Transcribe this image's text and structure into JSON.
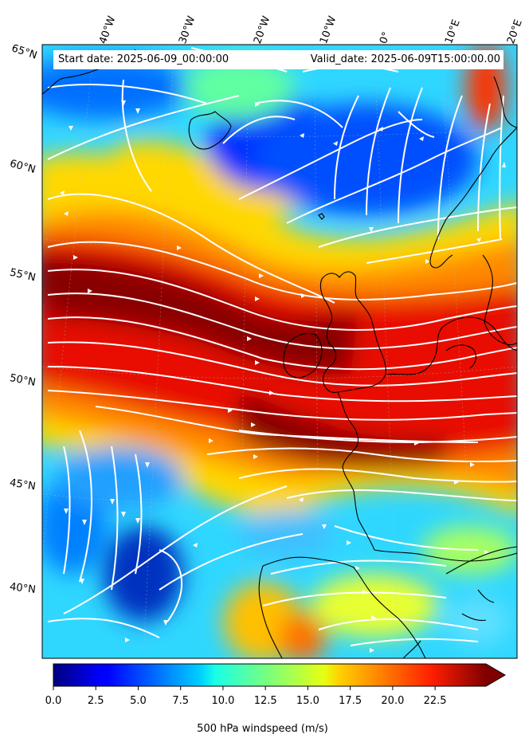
{
  "header": {
    "start_date": "Start date: 2025-06-09_00:00:00",
    "valid_date": "Valid_date: 2025-06-09T15:00:00.00"
  },
  "lon_labels": [
    "40°W",
    "30°W",
    "20°W",
    "10°W",
    "0°",
    "10°E",
    "20°E"
  ],
  "lat_labels": [
    "65°N",
    "60°N",
    "55°N",
    "50°N",
    "45°N",
    "40°N"
  ],
  "colorbar": {
    "label": "500 hPa windspeed (m/s)",
    "ticks": [
      "0.0",
      "2.5",
      "5.0",
      "7.5",
      "10.0",
      "12.5",
      "15.0",
      "17.5",
      "20.0",
      "22.5"
    ],
    "min": 0,
    "max": 25.5,
    "extend": "max",
    "colormap": "jet"
  },
  "colors": {
    "streamline": "#ffffff",
    "coastline": "#000000"
  }
}
